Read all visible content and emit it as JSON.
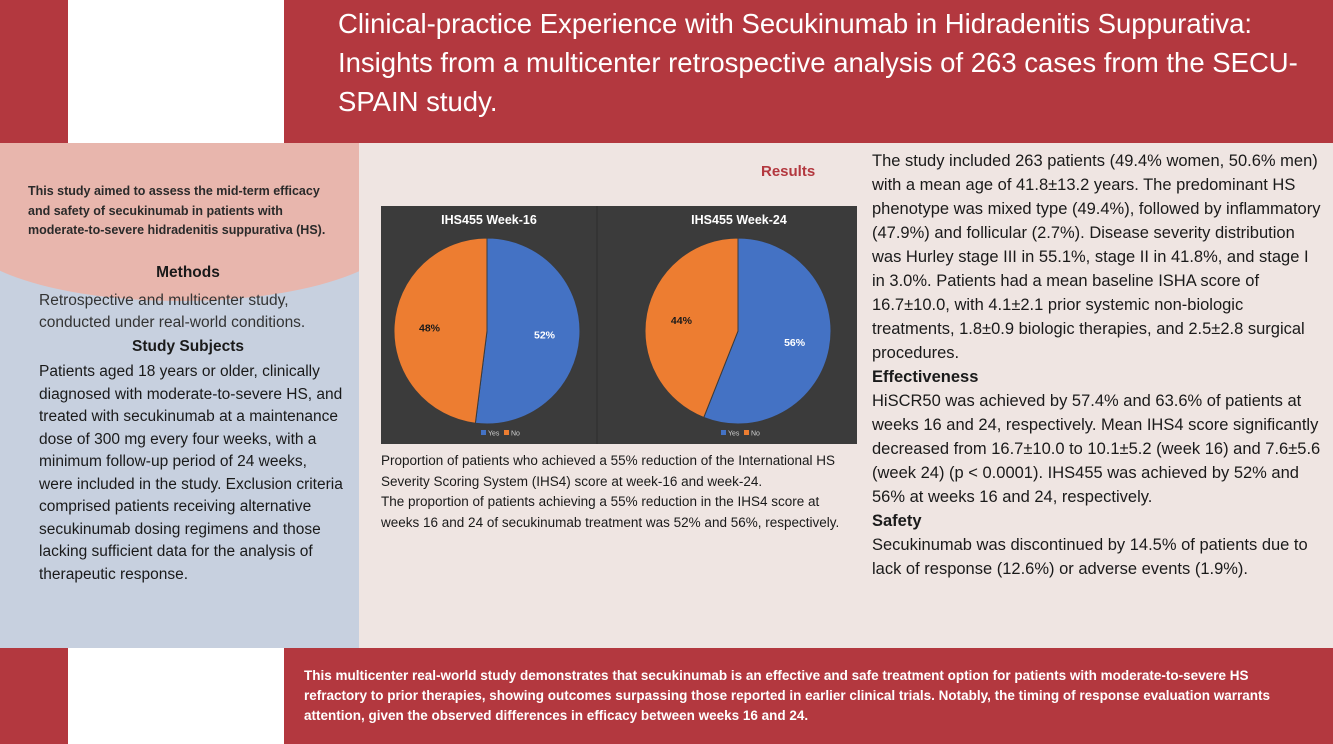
{
  "header": {
    "title": "Clinical-practice Experience with Secukinumab in Hidradenitis Suppurativa: Insights from a multicenter retrospective analysis of 263 cases from the SECU-SPAIN study."
  },
  "left": {
    "aim": "This study aimed to assess the mid-term efficacy and safety of secukinumab in patients with moderate-to-severe hidradenitis suppurativa (HS).",
    "methods_heading": "Methods",
    "methods_text": "Retrospective and multicenter study, conducted under real-world conditions.",
    "subjects_heading": "Study Subjects",
    "subjects_text": "Patients aged 18 years or older, clinically diagnosed with moderate-to-severe HS, and treated with secukinumab at a maintenance dose of 300 mg every four weeks, with a minimum follow-up period of 24 weeks, were included in the study. Exclusion criteria comprised patients receiving alternative secukinumab dosing regimens and those lacking sufficient data for the analysis of therapeutic response."
  },
  "results": {
    "heading": "Results",
    "caption_1": "Proportion of patients who achieved a 55% reduction of the International HS Severity Scoring System (IHS4) score at week-16 and week-24.",
    "caption_2": "The proportion of patients achieving a 55% reduction in the IHS4 score at weeks 16 and 24 of secukinumab treatment was 52% and 56%, respectively."
  },
  "chart_data": [
    {
      "type": "pie",
      "title": "IHS455 Week-16",
      "categories": [
        "Yes",
        "No"
      ],
      "values": [
        52,
        48
      ],
      "labels": [
        "52%",
        "48%"
      ],
      "colors": [
        "#4472c4",
        "#ed7d31"
      ],
      "legend": "bottom"
    },
    {
      "type": "pie",
      "title": "IHS455 Week-24",
      "categories": [
        "Yes",
        "No"
      ],
      "values": [
        56,
        44
      ],
      "labels": [
        "56%",
        "44%"
      ],
      "colors": [
        "#4472c4",
        "#ed7d31"
      ],
      "legend": "bottom"
    }
  ],
  "right": {
    "summary": "The study included 263 patients (49.4% women, 50.6% men) with a mean age of 41.8±13.2 years. The predominant HS phenotype was mixed type (49.4%), followed by inflammatory (47.9%) and follicular (2.7%). Disease severity distribution was Hurley stage III in 55.1%, stage II in 41.8%, and stage I in 3.0%. Patients had a mean baseline ISHA score of 16.7±10.0, with 4.1±2.1 prior systemic non-biologic treatments, 1.8±0.9 biologic therapies, and 2.5±2.8 surgical procedures.",
    "effectiveness_heading": "Effectiveness",
    "effectiveness_text": "HiSCR50 was achieved by 57.4% and 63.6% of patients at weeks 16 and 24, respectively. Mean IHS4 score significantly decreased from 16.7±10.0 to 10.1±5.2 (week 16) and 7.6±5.6 (week 24) (p < 0.0001). IHS455 was achieved by 52% and 56% at weeks 16 and 24, respectively.",
    "safety_heading": "Safety",
    "safety_text": "Secukinumab was discontinued by 14.5% of patients due to lack of response (12.6%) or adverse events (1.9%)."
  },
  "footer": {
    "conclusion": "This multicenter real-world study demonstrates that secukinumab is an effective and safe treatment option for patients with moderate-to-severe HS refractory to prior therapies, showing outcomes surpassing those reported in earlier clinical trials. Notably, the timing of response evaluation warrants attention, given the observed differences in efficacy between weeks 16 and 24."
  }
}
